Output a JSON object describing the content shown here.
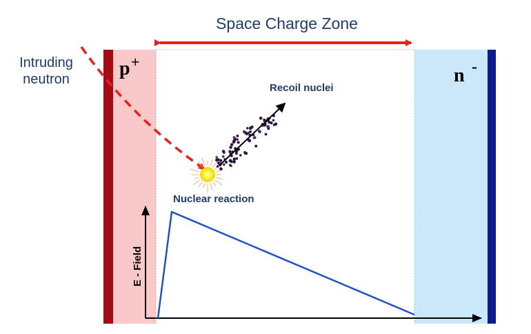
{
  "title": "Space Charge Zone",
  "labels": {
    "neutron_line1": "Intruding",
    "neutron_line2": "neutron",
    "p_region": "p",
    "p_sup": "+",
    "n_region": "n",
    "n_sup": "-",
    "recoil": "Recoil nuclei",
    "reaction": "Nuclear reaction",
    "efield_axis": "E - Field"
  },
  "colors": {
    "title_text": "#1f3b6e",
    "label_text": "#1f3b6e",
    "p_region_fill": "#f9c8c8",
    "p_contact": "#a10d12",
    "n_region_fill": "#cbe8fb",
    "n_contact": "#0a1d8f",
    "arrow_red": "#ee1c1c",
    "field_line": "#1f4fd0",
    "reaction_glow": "#f7f02a",
    "particle": "#2a1545"
  },
  "icons": {
    "neutron_path": "dashed-arrow-icon",
    "span_arrow": "double-arrow-icon",
    "recoil_arrow": "arrow-icon",
    "reaction": "starburst-icon"
  }
}
